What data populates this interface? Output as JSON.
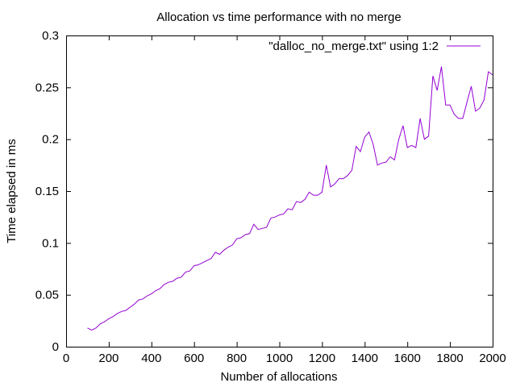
{
  "chart_data": {
    "type": "line",
    "title": "Allocation vs time performance with no merge",
    "xlabel": "Number of allocations",
    "ylabel": "Time elapsed in ms",
    "xlim": [
      0,
      2000
    ],
    "ylim": [
      0,
      0.3
    ],
    "x_ticks": [
      0,
      200,
      400,
      600,
      800,
      1000,
      1200,
      1400,
      1600,
      1800,
      2000
    ],
    "y_ticks": [
      0,
      0.05,
      0.1,
      0.15,
      0.2,
      0.25,
      0.3
    ],
    "x_tick_labels": [
      "0",
      "200",
      "400",
      "600",
      "800",
      "1000",
      "1200",
      "1400",
      "1600",
      "1800",
      "2000"
    ],
    "y_tick_labels": [
      "0",
      "0.05",
      "0.1",
      "0.15",
      "0.2",
      "0.25",
      "0.3"
    ],
    "grid": false,
    "legend_position": "top-right",
    "series": [
      {
        "name": "\"dalloc_no_merge.txt\" using 1:2",
        "color": "#9400d3",
        "x": [
          100,
          120,
          140,
          160,
          180,
          200,
          220,
          240,
          260,
          280,
          300,
          320,
          340,
          360,
          380,
          400,
          420,
          440,
          460,
          480,
          500,
          520,
          540,
          560,
          580,
          600,
          620,
          640,
          660,
          680,
          700,
          720,
          740,
          760,
          780,
          800,
          820,
          840,
          860,
          880,
          900,
          920,
          940,
          960,
          980,
          1000,
          1020,
          1040,
          1060,
          1080,
          1100,
          1120,
          1140,
          1160,
          1180,
          1200,
          1220,
          1240,
          1260,
          1280,
          1300,
          1320,
          1340,
          1360,
          1380,
          1400,
          1420,
          1440,
          1460,
          1480,
          1500,
          1520,
          1540,
          1560,
          1580,
          1600,
          1620,
          1640,
          1660,
          1680,
          1700,
          1720,
          1740,
          1760,
          1780,
          1800,
          1820,
          1840,
          1860,
          1880,
          1900,
          1920,
          1940,
          1960,
          1980,
          2000
        ],
        "y": [
          0.018,
          0.016,
          0.018,
          0.022,
          0.024,
          0.027,
          0.029,
          0.032,
          0.034,
          0.035,
          0.038,
          0.041,
          0.045,
          0.046,
          0.049,
          0.051,
          0.054,
          0.056,
          0.06,
          0.062,
          0.063,
          0.066,
          0.067,
          0.072,
          0.073,
          0.078,
          0.079,
          0.081,
          0.083,
          0.085,
          0.091,
          0.089,
          0.093,
          0.096,
          0.098,
          0.104,
          0.105,
          0.108,
          0.109,
          0.118,
          0.113,
          0.114,
          0.115,
          0.124,
          0.125,
          0.127,
          0.128,
          0.133,
          0.132,
          0.14,
          0.139,
          0.142,
          0.149,
          0.146,
          0.146,
          0.149,
          0.175,
          0.154,
          0.157,
          0.162,
          0.162,
          0.165,
          0.17,
          0.193,
          0.188,
          0.202,
          0.207,
          0.195,
          0.175,
          0.177,
          0.178,
          0.183,
          0.18,
          0.2,
          0.213,
          0.192,
          0.194,
          0.192,
          0.22,
          0.2,
          0.203,
          0.261,
          0.247,
          0.27,
          0.233,
          0.233,
          0.224,
          0.22,
          0.22,
          0.236,
          0.251,
          0.227,
          0.23,
          0.238,
          0.265,
          0.262
        ]
      }
    ]
  }
}
